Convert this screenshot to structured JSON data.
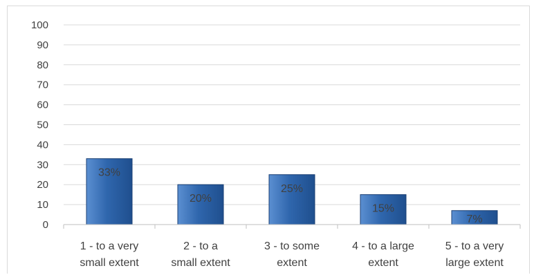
{
  "chart_data": {
    "type": "bar",
    "categories": [
      [
        "1 - to a very",
        "small extent"
      ],
      [
        "2 - to a",
        "small extent"
      ],
      [
        "3 - to some",
        "extent"
      ],
      [
        "4 - to a large",
        "extent"
      ],
      [
        "5 - to a very",
        "large extent"
      ]
    ],
    "values": [
      33,
      20,
      25,
      15,
      7
    ],
    "data_labels": [
      "33%",
      "20%",
      "25%",
      "15%",
      "7%"
    ],
    "yticks": [
      "0",
      "10",
      "20",
      "30",
      "40",
      "50",
      "60",
      "70",
      "80",
      "90",
      "100"
    ],
    "ylim": [
      0,
      100
    ],
    "title": "",
    "xlabel": "",
    "ylabel": "",
    "grid": true,
    "legend": "none",
    "colors": {
      "bar_top": "#5b8fd1",
      "bar_mid": "#2f66ad",
      "bar_bottom": "#1f4f8e",
      "bar_edge": "#1a3f73",
      "grid": "#d9d9d9",
      "axis": "#bfbfbf",
      "text": "#404040"
    }
  }
}
